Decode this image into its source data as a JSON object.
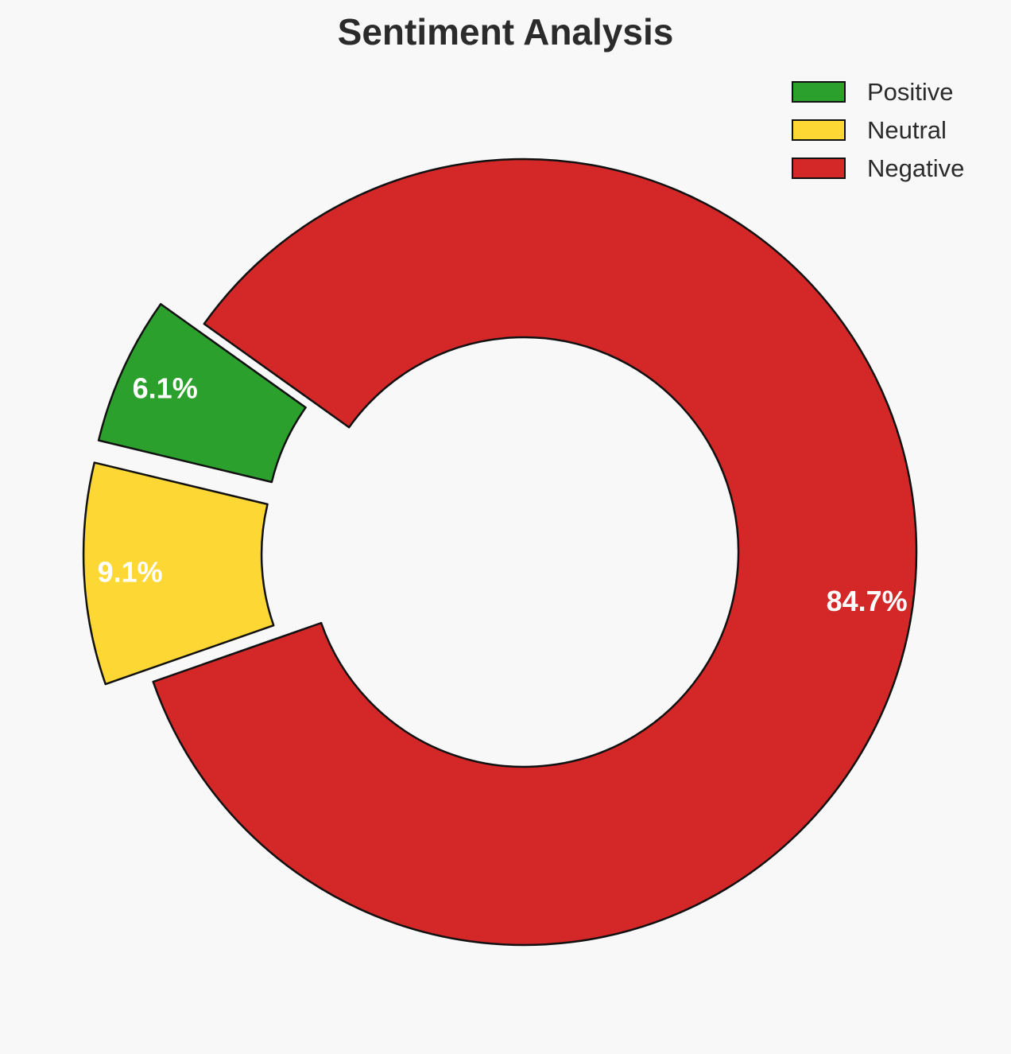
{
  "chart_data": {
    "type": "pie",
    "variant": "donut",
    "title": "Sentiment Analysis",
    "categories": [
      "Positive",
      "Neutral",
      "Negative"
    ],
    "values": [
      6.1,
      9.1,
      84.7
    ],
    "labels": [
      "6.1%",
      "9.1%",
      "84.7%"
    ],
    "colors": [
      "#2ca02c",
      "#fdd835",
      "#d32728"
    ],
    "edge_color": "#111111",
    "legend_position": "top-right",
    "exploded": [
      true,
      true,
      false
    ]
  }
}
